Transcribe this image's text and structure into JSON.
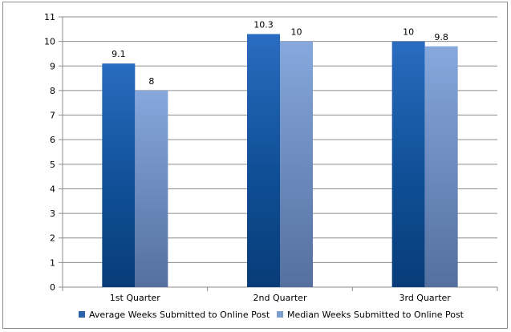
{
  "chart_data": {
    "type": "bar",
    "title": "",
    "xlabel": "",
    "ylabel": "",
    "categories": [
      "1st Quarter",
      "2nd Quarter",
      "3rd Quarter"
    ],
    "series": [
      {
        "name": "Average Weeks Submitted to Online Post",
        "values": [
          9.1,
          10.3,
          10
        ],
        "labels": [
          "9.1",
          "10.3",
          "10"
        ],
        "color": "#2a62ad"
      },
      {
        "name": "Median Weeks Submitted to Online Post",
        "values": [
          8,
          10,
          9.8
        ],
        "labels": [
          "8",
          "10",
          "9.8"
        ],
        "color": "#7e9ed0"
      }
    ],
    "ylim": [
      0,
      11
    ],
    "yticks": [
      0,
      1,
      2,
      3,
      4,
      5,
      6,
      7,
      8,
      9,
      10,
      11
    ],
    "grid": true,
    "legend": "bottom"
  }
}
